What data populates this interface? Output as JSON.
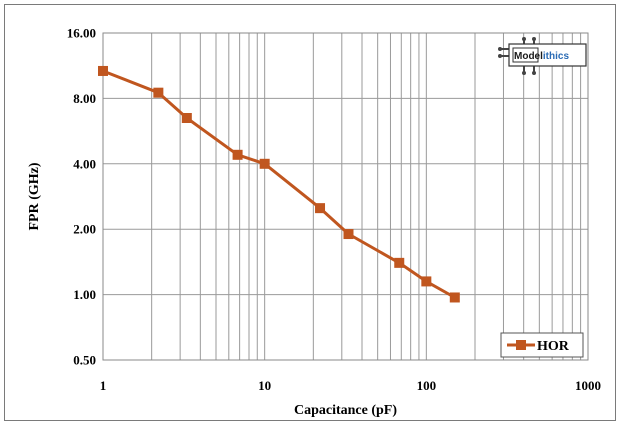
{
  "chart_data": {
    "type": "line",
    "title": "",
    "xlabel": "Capacitance (pF)",
    "ylabel": "FPR (GHz)",
    "x_scale": "log",
    "y_scale": "log",
    "xlim": [
      1,
      1000
    ],
    "ylim": [
      0.5,
      16
    ],
    "x_ticks": [
      "1",
      "10",
      "100",
      "1000"
    ],
    "y_ticks": [
      "0.50",
      "1.00",
      "2.00",
      "4.00",
      "8.00",
      "16.00"
    ],
    "grid": true,
    "legend_position": "bottom-right",
    "series": [
      {
        "name": "HOR",
        "color": "#c0561f",
        "marker": "square",
        "x": [
          1,
          2.2,
          3.3,
          6.8,
          10,
          22,
          33,
          68,
          100,
          150
        ],
        "y": [
          10.7,
          8.5,
          6.5,
          4.4,
          4.0,
          2.5,
          1.9,
          1.4,
          1.15,
          0.97
        ]
      }
    ]
  },
  "logo": {
    "text_dark": "Model",
    "text_light": "ithics",
    "text_full": "Modelithics",
    "icon": "chip-icon"
  }
}
